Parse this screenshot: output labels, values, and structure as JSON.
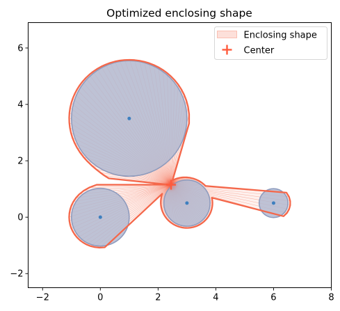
{
  "chart_data": {
    "type": "scatter",
    "title": "Optimized enclosing shape",
    "xlabel": "",
    "ylabel": "",
    "xlim": [
      -2.5,
      8
    ],
    "ylim": [
      -2.5,
      6.9
    ],
    "xticks": [
      -2,
      0,
      2,
      4,
      6,
      8
    ],
    "yticks": [
      -2,
      0,
      2,
      4,
      6
    ],
    "grid": false,
    "legend_position": "top-right",
    "circles": [
      {
        "cx": 1,
        "cy": 3.5,
        "r": 2
      },
      {
        "cx": 0,
        "cy": 0,
        "r": 1
      },
      {
        "cx": 3,
        "cy": 0.5,
        "r": 0.8
      },
      {
        "cx": 6,
        "cy": 0.5,
        "r": 0.5
      }
    ],
    "center": {
      "x": 2.45,
      "y": 1.15
    },
    "legend": [
      {
        "label": "Enclosing shape",
        "kind": "patch"
      },
      {
        "label": "Center",
        "kind": "marker"
      }
    ],
    "colors": {
      "shape_edge": "#f4674a",
      "shape_fill": "#fde0da",
      "ray": "#f4674a",
      "circle_fill": "#b0b7d0",
      "circle_edge": "#8e9bbd",
      "point": "#3e7fbf",
      "center": "#ff5a3c"
    }
  }
}
